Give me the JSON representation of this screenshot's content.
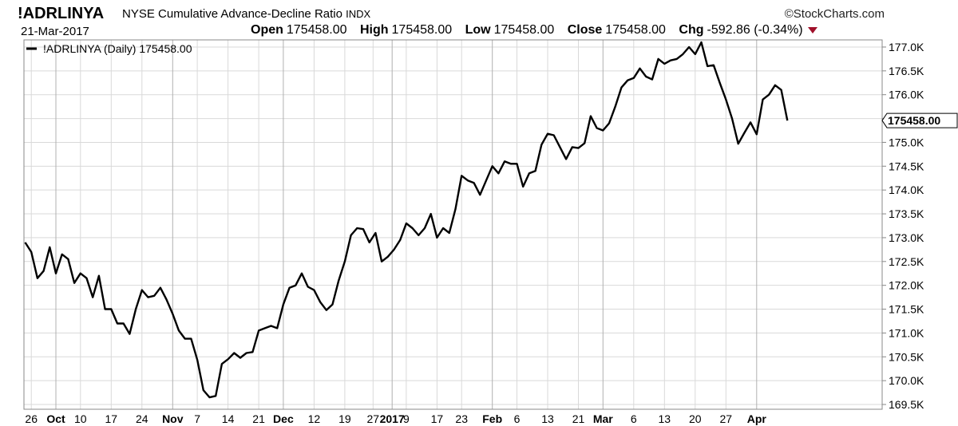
{
  "header": {
    "symbol": "!ADRLINYA",
    "name": "NYSE Cumulative Advance-Decline Ratio",
    "exchange": "INDX",
    "date": "21-Mar-2017",
    "brand": "©StockCharts.com",
    "open_label": "Open",
    "open": "175458.00",
    "high_label": "High",
    "high": "175458.00",
    "low_label": "Low",
    "low": "175458.00",
    "close_label": "Close",
    "close": "175458.00",
    "chg_label": "Chg",
    "chg": "-592.86 (-0.34%)"
  },
  "chart_data": {
    "type": "line",
    "legend": "!ADRLINYA (Daily) 175458.00",
    "last_value_label": "175458.00",
    "ylim": [
      169400,
      177150
    ],
    "y_ticks": [
      {
        "value": 177000,
        "label": "177.0K"
      },
      {
        "value": 176500,
        "label": "176.5K"
      },
      {
        "value": 176000,
        "label": "176.0K"
      },
      {
        "value": 175500,
        "label": "175.5K"
      },
      {
        "value": 175000,
        "label": "175.0K"
      },
      {
        "value": 174500,
        "label": "174.5K"
      },
      {
        "value": 174000,
        "label": "174.0K"
      },
      {
        "value": 173500,
        "label": "173.5K"
      },
      {
        "value": 173000,
        "label": "173.0K"
      },
      {
        "value": 172500,
        "label": "172.5K"
      },
      {
        "value": 172000,
        "label": "172.0K"
      },
      {
        "value": 171500,
        "label": "171.5K"
      },
      {
        "value": 171000,
        "label": "171.0K"
      },
      {
        "value": 170500,
        "label": "170.5K"
      },
      {
        "value": 170000,
        "label": "170.0K"
      },
      {
        "value": 169500,
        "label": "169.5K"
      }
    ],
    "x_ticks": [
      {
        "i": 1,
        "label": "26",
        "bold": false
      },
      {
        "i": 5,
        "label": "Oct",
        "bold": true
      },
      {
        "i": 9,
        "label": "10",
        "bold": false
      },
      {
        "i": 14,
        "label": "17",
        "bold": false
      },
      {
        "i": 19,
        "label": "24",
        "bold": false
      },
      {
        "i": 24,
        "label": "Nov",
        "bold": true
      },
      {
        "i": 28,
        "label": "7",
        "bold": false
      },
      {
        "i": 33,
        "label": "14",
        "bold": false
      },
      {
        "i": 38,
        "label": "21",
        "bold": false
      },
      {
        "i": 42,
        "label": "Dec",
        "bold": true
      },
      {
        "i": 47,
        "label": "12",
        "bold": false
      },
      {
        "i": 52,
        "label": "19",
        "bold": false
      },
      {
        "i": 56.6,
        "label": "27",
        "bold": false
      },
      {
        "i": 59.7,
        "label": "2017",
        "bold": true
      },
      {
        "i": 62,
        "label": "9",
        "bold": false
      },
      {
        "i": 67,
        "label": "17",
        "bold": false
      },
      {
        "i": 71,
        "label": "23",
        "bold": false
      },
      {
        "i": 76,
        "label": "Feb",
        "bold": true
      },
      {
        "i": 80,
        "label": "6",
        "bold": false
      },
      {
        "i": 85,
        "label": "13",
        "bold": false
      },
      {
        "i": 90,
        "label": "21",
        "bold": false
      },
      {
        "i": 94,
        "label": "Mar",
        "bold": true
      },
      {
        "i": 99,
        "label": "6",
        "bold": false
      },
      {
        "i": 104,
        "label": "13",
        "bold": false
      },
      {
        "i": 109,
        "label": "20",
        "bold": false
      },
      {
        "i": 114,
        "label": "27",
        "bold": false
      },
      {
        "i": 119,
        "label": "Apr",
        "bold": true
      }
    ],
    "values": [
      172900,
      172700,
      172150,
      172300,
      172800,
      172250,
      172650,
      172550,
      172050,
      172250,
      172150,
      171750,
      172200,
      171500,
      171500,
      171200,
      171200,
      170980,
      171500,
      171900,
      171750,
      171780,
      171950,
      171700,
      171400,
      171050,
      170880,
      170880,
      170440,
      169800,
      169650,
      169680,
      170350,
      170450,
      170580,
      170480,
      170580,
      170600,
      171050,
      171100,
      171150,
      171100,
      171600,
      171950,
      172000,
      172250,
      171970,
      171900,
      171650,
      171480,
      171600,
      172100,
      172500,
      173050,
      173200,
      173180,
      172900,
      173100,
      172500,
      172600,
      172750,
      172950,
      173300,
      173200,
      173050,
      173200,
      173500,
      173000,
      173200,
      173100,
      173600,
      174300,
      174200,
      174150,
      173900,
      174200,
      174500,
      174350,
      174600,
      174550,
      174550,
      174070,
      174350,
      174400,
      174950,
      175180,
      175150,
      174900,
      174650,
      174900,
      174880,
      174980,
      175550,
      175300,
      175250,
      175400,
      175750,
      176150,
      176300,
      176350,
      176550,
      176380,
      176320,
      176750,
      176650,
      176720,
      176750,
      176850,
      177000,
      176850,
      177100,
      176600,
      176620,
      176250,
      175900,
      175500,
      174970,
      175200,
      175420,
      175170,
      175900,
      176000,
      176200,
      176100,
      175458
    ]
  }
}
